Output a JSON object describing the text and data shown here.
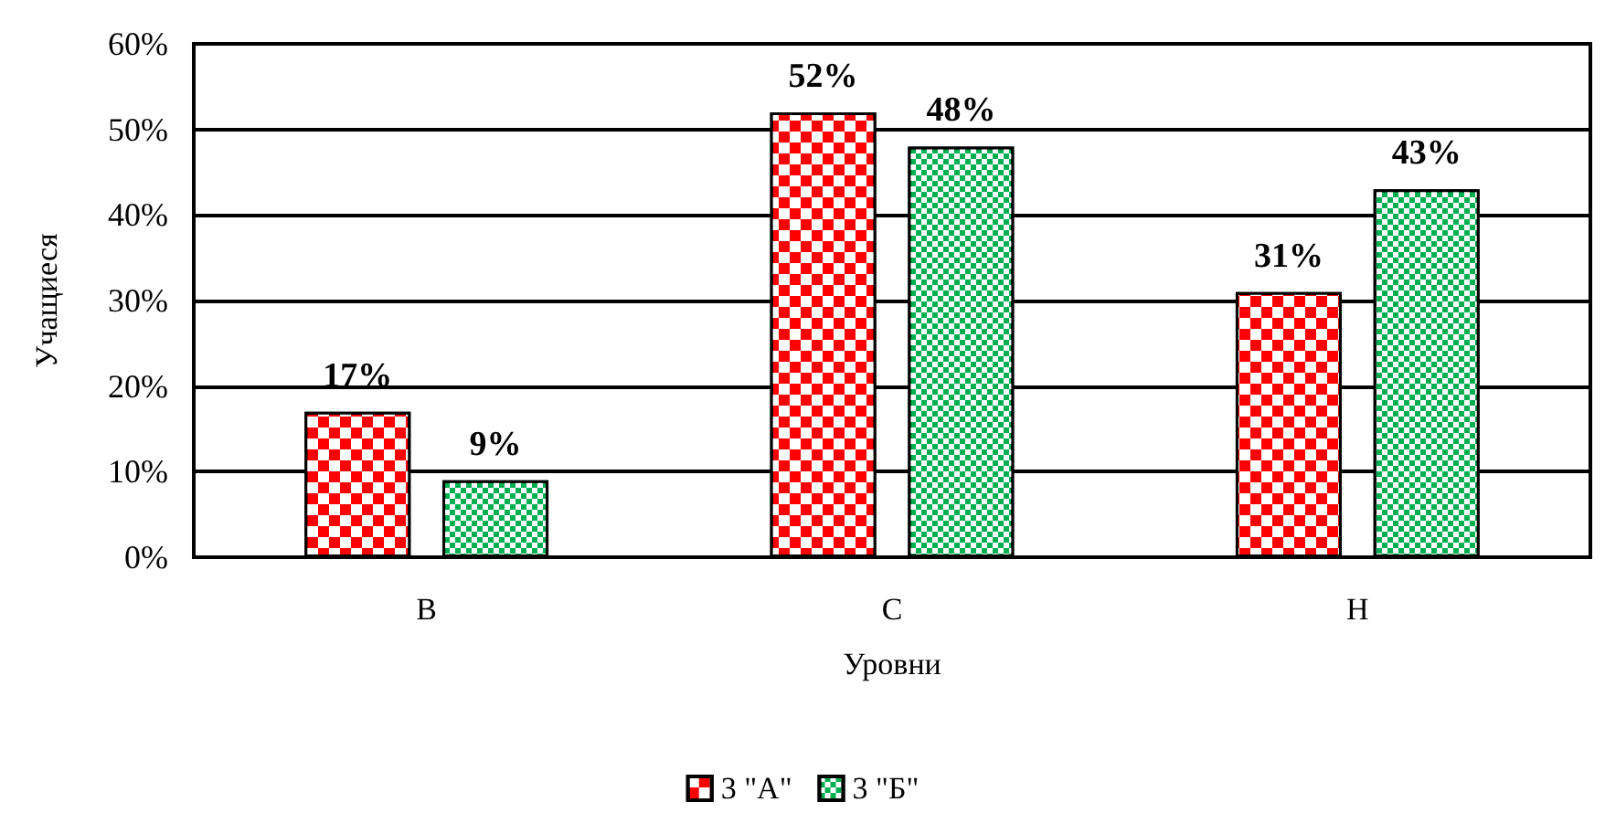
{
  "chart_data": {
    "type": "bar",
    "xlabel": "Уровни",
    "ylabel": "Учащиеся",
    "categories": [
      "В",
      "С",
      "Н"
    ],
    "series": [
      {
        "name": "3 \"А\"",
        "color": "#ff0000",
        "values": [
          17,
          52,
          31
        ],
        "value_labels": [
          "17%",
          "52%",
          "31%"
        ]
      },
      {
        "name": "3 \"Б\"",
        "color": "#00b050",
        "values": [
          9,
          48,
          43
        ],
        "value_labels": [
          "9%",
          "48%",
          "43%"
        ]
      }
    ],
    "ylim": [
      0,
      60
    ],
    "yticks": [
      {
        "value": 0,
        "label": "0%"
      },
      {
        "value": 10,
        "label": "10%"
      },
      {
        "value": 20,
        "label": "20%"
      },
      {
        "value": 30,
        "label": "30%"
      },
      {
        "value": 40,
        "label": "40%"
      },
      {
        "value": 50,
        "label": "50%"
      },
      {
        "value": 60,
        "label": "60%"
      }
    ],
    "grid": "y",
    "legend": "bottom"
  }
}
